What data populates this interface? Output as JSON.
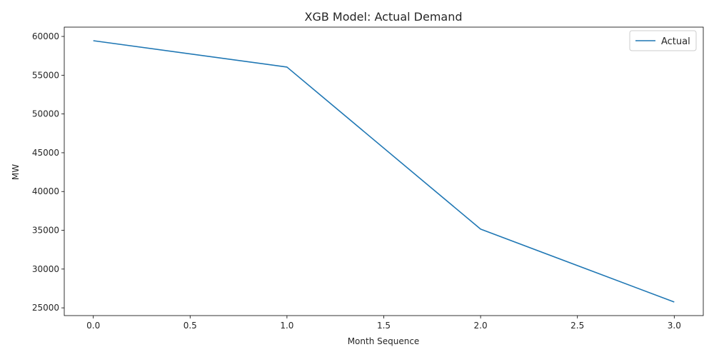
{
  "chart_data": {
    "type": "line",
    "title": "XGB Model: Actual Demand",
    "xlabel": "Month Sequence",
    "ylabel": "MW",
    "xlim": [
      -0.15,
      3.15
    ],
    "ylim": [
      24000,
      61200
    ],
    "x_ticks": [
      0.0,
      0.5,
      1.0,
      1.5,
      2.0,
      2.5,
      3.0
    ],
    "x_tick_labels": [
      "0.0",
      "0.5",
      "1.0",
      "1.5",
      "2.0",
      "2.5",
      "3.0"
    ],
    "y_ticks": [
      25000,
      30000,
      35000,
      40000,
      45000,
      50000,
      55000,
      60000
    ],
    "y_tick_labels": [
      "25000",
      "30000",
      "35000",
      "40000",
      "45000",
      "50000",
      "55000",
      "60000"
    ],
    "grid": false,
    "legend_position": "top-right",
    "series": [
      {
        "name": "Actual",
        "color": "#1f77b4",
        "x": [
          0,
          1,
          2,
          3
        ],
        "y": [
          59450,
          56050,
          35150,
          25750
        ]
      }
    ]
  }
}
